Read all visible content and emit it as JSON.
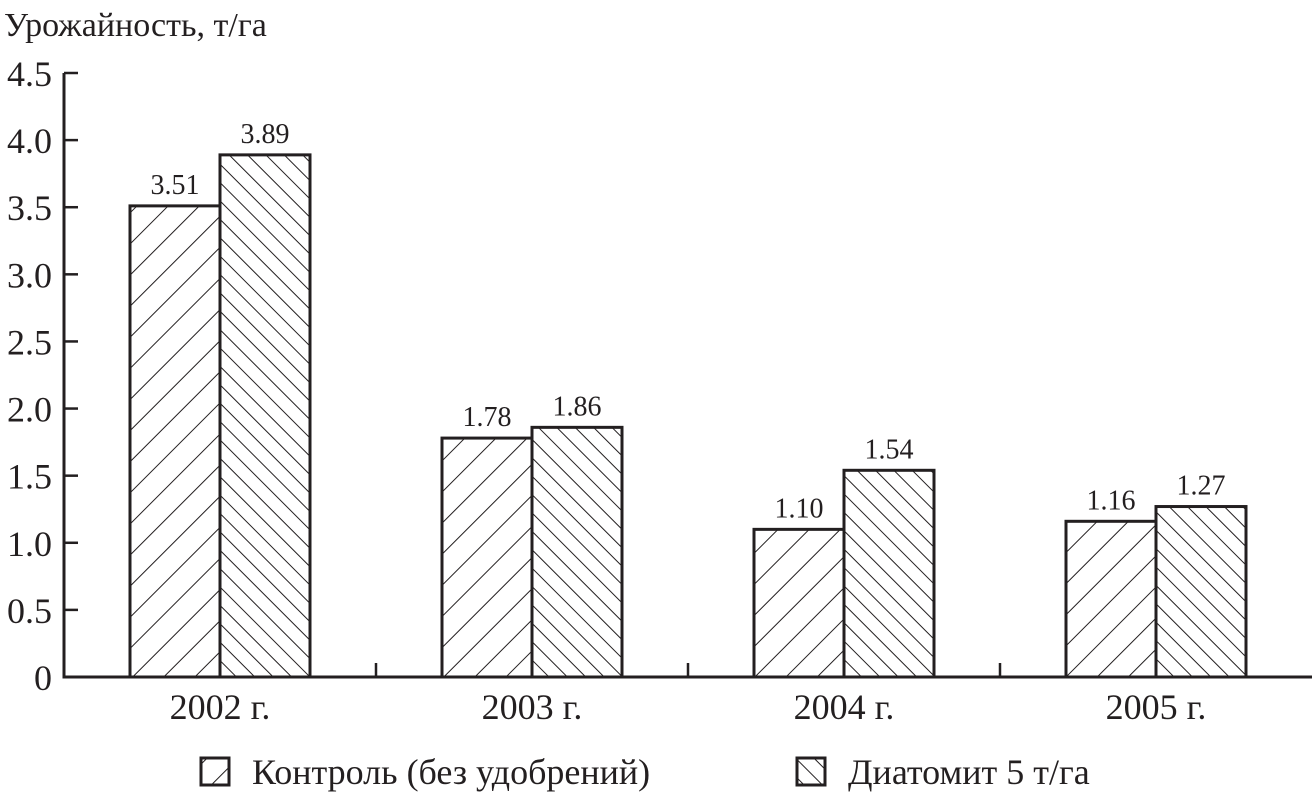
{
  "chart_data": {
    "type": "bar",
    "title": "",
    "ylabel": "Урожайность, т/га",
    "xlabel": "",
    "ylim": [
      0,
      4.5
    ],
    "yticks": [
      "0",
      "0.5",
      "1.0",
      "1.5",
      "2.0",
      "2.5",
      "3.0",
      "3.5",
      "4.0",
      "4.5"
    ],
    "categories": [
      "2002 г.",
      "2003 г.",
      "2004 г.",
      "2005 г."
    ],
    "series": [
      {
        "name": "Контроль (без удобрений)",
        "pattern": "forward-hatch",
        "values": [
          3.51,
          1.78,
          1.1,
          1.16
        ],
        "labels": [
          "3.51",
          "1.78",
          "1.10",
          "1.16"
        ]
      },
      {
        "name": "Диатомит 5 т/га",
        "pattern": "back-hatch",
        "values": [
          3.89,
          1.86,
          1.54,
          1.27
        ],
        "labels": [
          "3.89",
          "1.86",
          "1.54",
          "1.27"
        ]
      }
    ],
    "legend_position": "bottom",
    "grid": false,
    "color": "#231f20"
  }
}
